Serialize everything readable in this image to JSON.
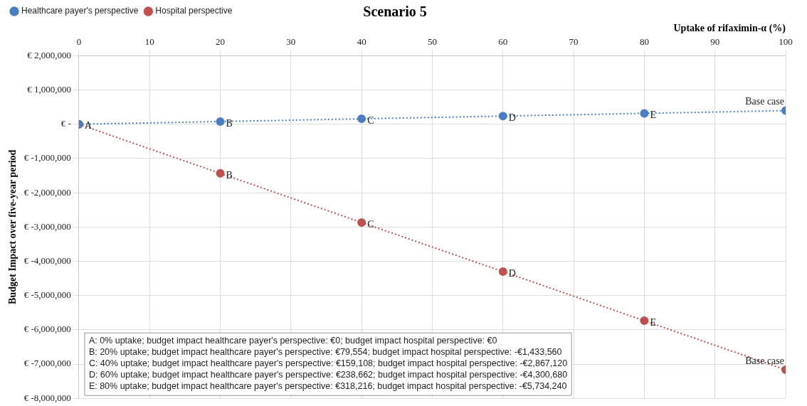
{
  "chart_data": {
    "type": "line",
    "title": "Scenario 5",
    "xlabel": "Uptake of rifaximin-α (%)",
    "ylabel": "Budget Impact over five-year period",
    "x": [
      0,
      20,
      40,
      60,
      80,
      100
    ],
    "series": [
      {
        "name": "Healthcare payer's perspective",
        "color": "#4a7ec4",
        "values": [
          0,
          79554,
          159108,
          238662,
          318216,
          397770
        ]
      },
      {
        "name": "Hospital perspective",
        "color": "#c0504d",
        "values": [
          0,
          -1433560,
          -2867120,
          -4300680,
          -5734240,
          -7167800
        ]
      }
    ],
    "xlim": [
      0,
      100
    ],
    "xticks": [
      0,
      10,
      20,
      30,
      40,
      50,
      60,
      70,
      80,
      90,
      100
    ],
    "ylim": [
      -8000000,
      2000000
    ],
    "yticks": [
      {
        "value": -8000000,
        "label": "€ -8,000,000"
      },
      {
        "value": -7000000,
        "label": "€ -7,000,000"
      },
      {
        "value": -6000000,
        "label": "€ -6,000,000"
      },
      {
        "value": -5000000,
        "label": "€ -5,000,000"
      },
      {
        "value": -4000000,
        "label": "€ -4,000,000"
      },
      {
        "value": -3000000,
        "label": "€ -3,000,000"
      },
      {
        "value": -2000000,
        "label": "€ -2,000,000"
      },
      {
        "value": -1000000,
        "label": "€ -1,000,000"
      },
      {
        "value": 0,
        "label": "€ -"
      },
      {
        "value": 1000000,
        "label": "€ 1,000,000"
      },
      {
        "value": 2000000,
        "label": "€ 2,000,000"
      }
    ],
    "annotations": [
      {
        "text": "A",
        "x": 0,
        "y": 0
      },
      {
        "text": "B",
        "x": 20,
        "y": 79554
      },
      {
        "text": "C",
        "x": 40,
        "y": 159108
      },
      {
        "text": "D",
        "x": 60,
        "y": 238662
      },
      {
        "text": "E",
        "x": 80,
        "y": 318216
      },
      {
        "text": "Base case",
        "x": 100,
        "y": 397770
      },
      {
        "text": "B",
        "x": 20,
        "y": -1433560
      },
      {
        "text": "C",
        "x": 40,
        "y": -2867120
      },
      {
        "text": "D",
        "x": 60,
        "y": -4300680
      },
      {
        "text": "E",
        "x": 80,
        "y": -5734240
      },
      {
        "text": "Base case",
        "x": 100,
        "y": -7167800
      },
      "A: 0% uptake; budget impact healthcare payer's perspective: €0; budget impact hospital perspective: €0",
      "B: 20% uptake; budget impact healthcare payer's perspective: €79,554; budget impact hospital perspective: -€1,433,560",
      "C: 40% uptake; budget impact healthcare payer's perspective: €159,108; budget impact hospital perspective: -€2,867,120",
      "D: 60% uptake; budget impact healthcare payer's perspective: €238,662; budget impact hospital perspective: -€4,300,680",
      "E: 80% uptake; budget impact healthcare payer's perspective: €318,216; budget impact hospital perspective: -€5,734,240"
    ],
    "grid": true,
    "legend": "top left",
    "marker": "circle",
    "line_style": "dotted"
  }
}
